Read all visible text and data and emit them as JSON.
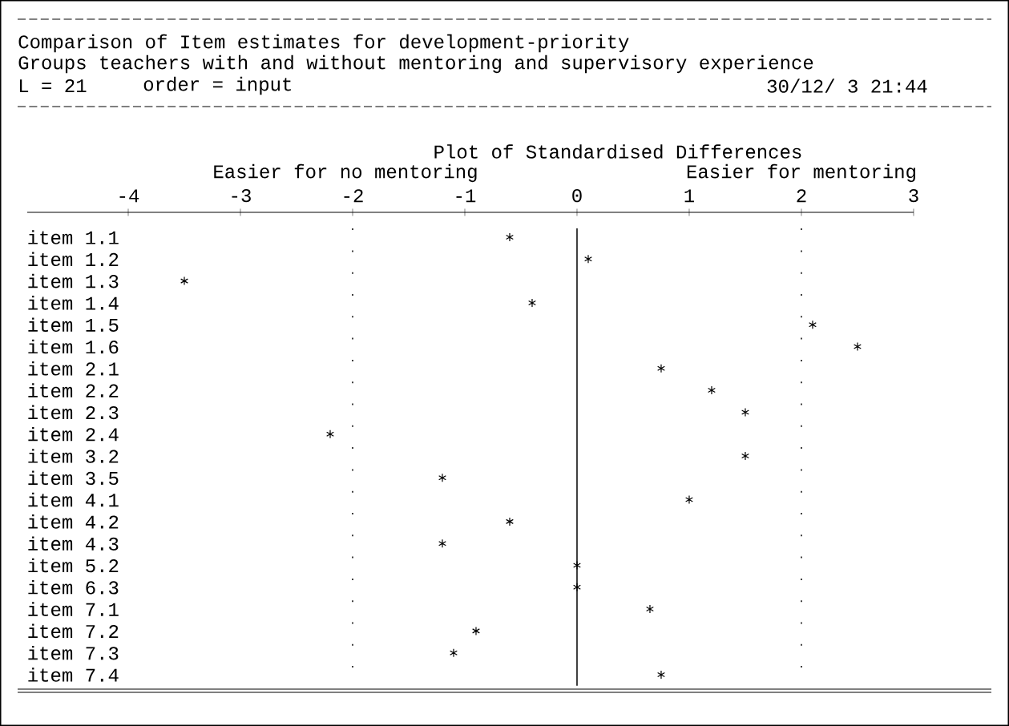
{
  "chart_data": {
    "type": "scatter",
    "orientation": "horizontal",
    "title": "Comparison of Item estimates for development-priority",
    "subtitle": "Groups teachers with and without mentoring and supervisory experience",
    "xlabel": "Plot of Standardised Differences",
    "annotations": [
      "L = 21",
      "order = input",
      "30/12/ 3 21:44",
      "Easier for no mentoring",
      "Easier for mentoring"
    ],
    "categories": [
      "item 1.1",
      "item 1.2",
      "item 1.3",
      "item 1.4",
      "item 1.5",
      "item 1.6",
      "item 2.1",
      "item 2.2",
      "item 2.3",
      "item 2.4",
      "item 3.2",
      "item 3.5",
      "item 4.1",
      "item 4.2",
      "item 4.3",
      "item 5.2",
      "item 6.3",
      "item 7.1",
      "item 7.2",
      "item 7.3",
      "item 7.4"
    ],
    "values": [
      -0.6,
      0.1,
      -3.5,
      -0.4,
      2.1,
      2.5,
      0.75,
      1.2,
      1.5,
      -2.2,
      1.5,
      -1.2,
      1.0,
      -0.6,
      -1.2,
      0,
      0,
      0.65,
      -0.9,
      -1.1,
      0.75
    ],
    "color": "#000000",
    "xlim": [
      -4.9,
      3
    ],
    "xticks": [
      -4,
      -3,
      -2,
      -1,
      0,
      1,
      2,
      3
    ],
    "ref_lines": [
      {
        "axis": "x",
        "value": -2,
        "line_style": "dotted"
      },
      {
        "axis": "x",
        "value": 0,
        "line_style": "solid"
      },
      {
        "axis": "x",
        "value": 2,
        "line_style": "dotted"
      }
    ],
    "marker": "cross",
    "grid": false
  }
}
